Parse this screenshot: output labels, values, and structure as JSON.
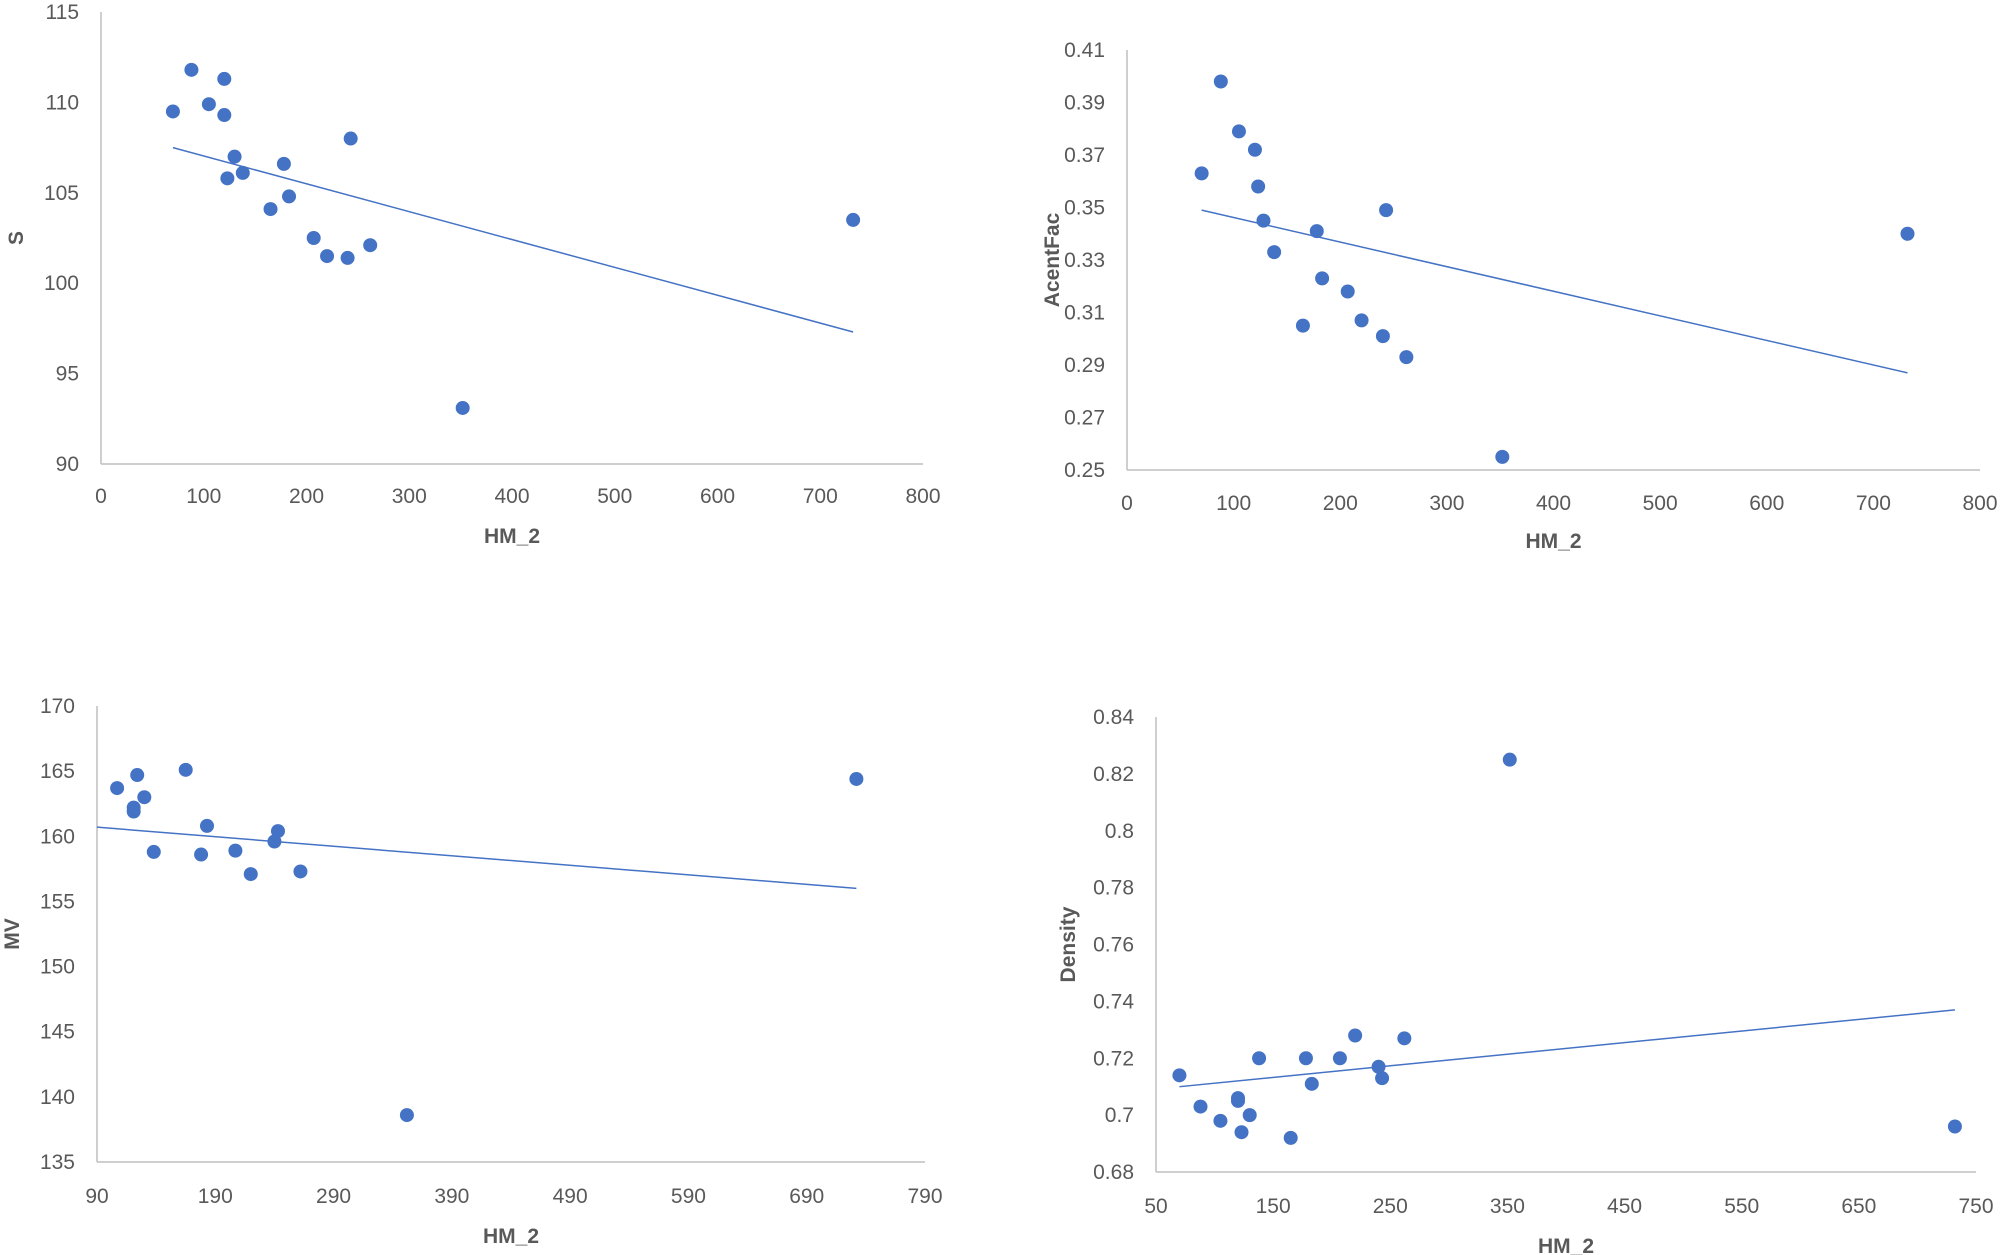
{
  "colors": {
    "point": "#4472c4",
    "trendline": "#4472c4",
    "axis": "#bfbfbf",
    "text": "#595959"
  },
  "chart_data": [
    {
      "type": "scatter",
      "title": "",
      "xlabel": "HM_2",
      "ylabel": "S",
      "xlim": [
        0,
        800
      ],
      "ylim": [
        90,
        115
      ],
      "xticks": [
        0,
        100,
        200,
        300,
        400,
        500,
        600,
        700,
        800
      ],
      "yticks": [
        90,
        95,
        100,
        105,
        110,
        115
      ],
      "xtick_labels": [
        "0",
        "100",
        "200",
        "300",
        "400",
        "500",
        "600",
        "700",
        "800"
      ],
      "ytick_labels": [
        "90",
        "95",
        "100",
        "105",
        "110",
        "115"
      ],
      "points": [
        [
          70,
          109.5
        ],
        [
          88,
          111.8
        ],
        [
          105,
          109.9
        ],
        [
          120,
          111.3
        ],
        [
          120,
          109.3
        ],
        [
          130,
          107.0
        ],
        [
          123,
          105.8
        ],
        [
          138,
          106.1
        ],
        [
          165,
          104.1
        ],
        [
          178,
          106.6
        ],
        [
          183,
          104.8
        ],
        [
          207,
          102.5
        ],
        [
          220,
          101.5
        ],
        [
          240,
          101.4
        ],
        [
          243,
          108.0
        ],
        [
          262,
          102.1
        ],
        [
          352,
          93.1
        ],
        [
          732,
          103.5
        ]
      ],
      "trendline": [
        [
          70,
          107.5
        ],
        [
          732,
          97.3
        ]
      ]
    },
    {
      "type": "scatter",
      "title": "",
      "xlabel": "HM_2",
      "ylabel": "AcentFac",
      "xlim": [
        0,
        800
      ],
      "ylim": [
        0.25,
        0.41
      ],
      "xticks": [
        0,
        100,
        200,
        300,
        400,
        500,
        600,
        700,
        800
      ],
      "yticks": [
        0.25,
        0.27,
        0.29,
        0.31,
        0.33,
        0.35,
        0.37,
        0.39,
        0.41
      ],
      "xtick_labels": [
        "0",
        "100",
        "200",
        "300",
        "400",
        "500",
        "600",
        "700",
        "800"
      ],
      "ytick_labels": [
        "0.25",
        "0.27",
        "0.29",
        "0.31",
        "0.33",
        "0.35",
        "0.37",
        "0.39",
        "0.41"
      ],
      "points": [
        [
          70,
          0.363
        ],
        [
          88,
          0.398
        ],
        [
          105,
          0.379
        ],
        [
          120,
          0.372
        ],
        [
          123,
          0.358
        ],
        [
          128,
          0.345
        ],
        [
          138,
          0.333
        ],
        [
          165,
          0.305
        ],
        [
          178,
          0.341
        ],
        [
          183,
          0.323
        ],
        [
          207,
          0.318
        ],
        [
          220,
          0.307
        ],
        [
          240,
          0.301
        ],
        [
          243,
          0.349
        ],
        [
          262,
          0.293
        ],
        [
          352,
          0.255
        ],
        [
          732,
          0.34
        ]
      ],
      "trendline": [
        [
          70,
          0.349
        ],
        [
          732,
          0.287
        ]
      ]
    },
    {
      "type": "scatter",
      "title": "",
      "xlabel": "HM_2",
      "ylabel": "MV",
      "xlim": [
        90,
        790
      ],
      "ylim": [
        135,
        170
      ],
      "xticks": [
        90,
        190,
        290,
        390,
        490,
        590,
        690,
        790
      ],
      "yticks": [
        135,
        140,
        145,
        150,
        155,
        160,
        165,
        170
      ],
      "xtick_labels": [
        "90",
        "190",
        "290",
        "390",
        "490",
        "590",
        "690",
        "790"
      ],
      "ytick_labels": [
        "135",
        "140",
        "145",
        "150",
        "155",
        "160",
        "165",
        "170"
      ],
      "points": [
        [
          107,
          163.7
        ],
        [
          121,
          162.2
        ],
        [
          121,
          161.9
        ],
        [
          124,
          164.7
        ],
        [
          130,
          163.0
        ],
        [
          138,
          158.8
        ],
        [
          165,
          165.1
        ],
        [
          178,
          158.6
        ],
        [
          183,
          160.8
        ],
        [
          207,
          158.9
        ],
        [
          220,
          157.1
        ],
        [
          240,
          159.6
        ],
        [
          243,
          160.4
        ],
        [
          262,
          157.3
        ],
        [
          352,
          138.6
        ],
        [
          732,
          164.4
        ]
      ],
      "trendline": [
        [
          90,
          160.7
        ],
        [
          732,
          156.0
        ]
      ]
    },
    {
      "type": "scatter",
      "title": "",
      "xlabel": "HM_2",
      "ylabel": "Density",
      "xlim": [
        50,
        750
      ],
      "ylim": [
        0.68,
        0.84
      ],
      "xticks": [
        50,
        150,
        250,
        350,
        450,
        550,
        650,
        750
      ],
      "yticks": [
        0.68,
        0.7,
        0.72,
        0.74,
        0.76,
        0.78,
        0.8,
        0.82,
        0.84
      ],
      "xtick_labels": [
        "50",
        "150",
        "250",
        "350",
        "450",
        "550",
        "650",
        "750"
      ],
      "ytick_labels": [
        "0.68",
        "0.7",
        "0.72",
        "0.74",
        "0.76",
        "0.78",
        "0.8",
        "0.82",
        "0.84"
      ],
      "points": [
        [
          70,
          0.714
        ],
        [
          88,
          0.703
        ],
        [
          105,
          0.698
        ],
        [
          120,
          0.706
        ],
        [
          120,
          0.705
        ],
        [
          123,
          0.694
        ],
        [
          130,
          0.7
        ],
        [
          138,
          0.72
        ],
        [
          165,
          0.692
        ],
        [
          178,
          0.72
        ],
        [
          183,
          0.711
        ],
        [
          207,
          0.72
        ],
        [
          220,
          0.728
        ],
        [
          240,
          0.717
        ],
        [
          243,
          0.713
        ],
        [
          262,
          0.727
        ],
        [
          352,
          0.825
        ],
        [
          732,
          0.696
        ]
      ],
      "trendline": [
        [
          70,
          0.71
        ],
        [
          732,
          0.737
        ]
      ]
    }
  ]
}
